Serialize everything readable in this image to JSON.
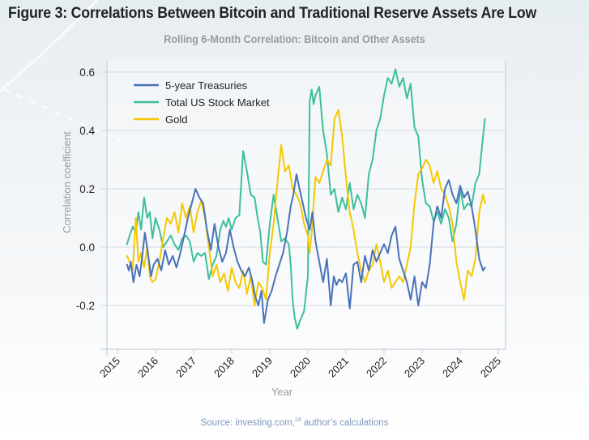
{
  "figure": {
    "title": "Figure 3: Correlations Between Bitcoin and Traditional Reserve Assets Are Low",
    "source_prefix": "Source: investing.com,",
    "source_ref": "24",
    "source_suffix": " author’s calculations"
  },
  "chart_data": {
    "type": "line",
    "title": "Rolling 6-Month Correlation: Bitcoin and Other Assets",
    "xlabel": "Year",
    "ylabel": "Correlation coefficient",
    "xlim": [
      2014.8,
      2025.2
    ],
    "ylim": [
      -0.35,
      0.65
    ],
    "x_ticks": [
      2015,
      2016,
      2017,
      2018,
      2019,
      2020,
      2021,
      2022,
      2023,
      2024,
      2025
    ],
    "y_ticks": [
      -0.2,
      0.0,
      0.2,
      0.4,
      0.6
    ],
    "y_tick_labels": [
      "-0.2",
      "0.0",
      "0.2",
      "0.4",
      "0.6"
    ],
    "grid": "horizontal",
    "legend_position": "top-left",
    "series": [
      {
        "name": "5-year Treasuries",
        "color": "#4a72b8",
        "x": [
          2015.25,
          2015.3,
          2015.35,
          2015.42,
          2015.5,
          2015.58,
          2015.65,
          2015.72,
          2015.8,
          2015.88,
          2015.95,
          2016.05,
          2016.15,
          2016.25,
          2016.35,
          2016.45,
          2016.55,
          2016.65,
          2016.75,
          2016.85,
          2016.95,
          2017.05,
          2017.15,
          2017.25,
          2017.35,
          2017.45,
          2017.55,
          2017.65,
          2017.75,
          2017.85,
          2017.95,
          2018.05,
          2018.15,
          2018.25,
          2018.35,
          2018.45,
          2018.55,
          2018.62,
          2018.7,
          2018.78,
          2018.85,
          2018.95,
          2019.05,
          2019.15,
          2019.25,
          2019.35,
          2019.45,
          2019.55,
          2019.62,
          2019.7,
          2019.78,
          2019.85,
          2019.95,
          2020.05,
          2020.12,
          2020.2,
          2020.3,
          2020.4,
          2020.5,
          2020.6,
          2020.68,
          2020.75,
          2020.82,
          2020.9,
          2021.0,
          2021.1,
          2021.2,
          2021.3,
          2021.4,
          2021.5,
          2021.6,
          2021.7,
          2021.8,
          2021.9,
          2022.0,
          2022.1,
          2022.2,
          2022.3,
          2022.4,
          2022.5,
          2022.6,
          2022.7,
          2022.8,
          2022.9,
          2023.0,
          2023.1,
          2023.2,
          2023.3,
          2023.4,
          2023.5,
          2023.6,
          2023.7,
          2023.8,
          2023.9,
          2024.0,
          2024.1,
          2024.2,
          2024.3,
          2024.4,
          2024.5,
          2024.6,
          2024.65
        ],
        "y": [
          -0.06,
          -0.08,
          -0.05,
          -0.12,
          -0.06,
          -0.1,
          -0.03,
          0.05,
          -0.02,
          -0.1,
          -0.06,
          -0.04,
          -0.08,
          -0.01,
          -0.06,
          -0.03,
          -0.07,
          -0.02,
          0.04,
          0.1,
          0.15,
          0.2,
          0.17,
          0.15,
          0.06,
          -0.01,
          0.08,
          0.0,
          -0.05,
          -0.02,
          0.06,
          0.0,
          -0.05,
          -0.08,
          -0.1,
          -0.07,
          -0.12,
          -0.17,
          -0.2,
          -0.15,
          -0.26,
          -0.18,
          -0.15,
          -0.1,
          -0.06,
          -0.02,
          0.05,
          0.14,
          0.18,
          0.25,
          0.2,
          0.16,
          0.1,
          0.06,
          0.12,
          0.02,
          -0.05,
          -0.12,
          -0.04,
          -0.2,
          -0.1,
          -0.13,
          -0.11,
          -0.12,
          -0.09,
          -0.21,
          -0.06,
          -0.05,
          -0.12,
          -0.03,
          -0.08,
          -0.01,
          -0.05,
          -0.02,
          0.01,
          -0.02,
          0.04,
          0.07,
          -0.04,
          -0.08,
          -0.12,
          -0.18,
          -0.1,
          -0.2,
          -0.12,
          -0.14,
          -0.06,
          0.08,
          0.14,
          0.1,
          0.2,
          0.23,
          0.18,
          0.15,
          0.21,
          0.17,
          0.19,
          0.14,
          0.06,
          -0.04,
          -0.08,
          -0.07
        ]
      },
      {
        "name": "Total US Stock Market",
        "color": "#3dbf9c",
        "x": [
          2015.25,
          2015.32,
          2015.4,
          2015.48,
          2015.55,
          2015.62,
          2015.7,
          2015.78,
          2015.85,
          2015.92,
          2016.0,
          2016.1,
          2016.2,
          2016.3,
          2016.4,
          2016.5,
          2016.6,
          2016.7,
          2016.8,
          2016.9,
          2017.0,
          2017.1,
          2017.2,
          2017.3,
          2017.4,
          2017.5,
          2017.6,
          2017.7,
          2017.78,
          2017.85,
          2017.92,
          2018.0,
          2018.1,
          2018.2,
          2018.3,
          2018.4,
          2018.5,
          2018.6,
          2018.68,
          2018.75,
          2018.82,
          2018.9,
          2019.0,
          2019.1,
          2019.2,
          2019.3,
          2019.4,
          2019.5,
          2019.55,
          2019.6,
          2019.65,
          2019.72,
          2019.8,
          2019.9,
          2020.0,
          2020.05,
          2020.1,
          2020.15,
          2020.2,
          2020.3,
          2020.4,
          2020.5,
          2020.6,
          2020.7,
          2020.8,
          2020.9,
          2021.0,
          2021.1,
          2021.2,
          2021.3,
          2021.4,
          2021.5,
          2021.6,
          2021.7,
          2021.8,
          2021.9,
          2022.0,
          2022.1,
          2022.2,
          2022.3,
          2022.4,
          2022.5,
          2022.6,
          2022.7,
          2022.8,
          2022.9,
          2023.0,
          2023.1,
          2023.2,
          2023.3,
          2023.4,
          2023.5,
          2023.6,
          2023.7,
          2023.8,
          2023.9,
          2024.0,
          2024.1,
          2024.2,
          2024.3,
          2024.4,
          2024.5,
          2024.6,
          2024.65
        ],
        "y": [
          0.01,
          0.04,
          0.07,
          0.05,
          0.12,
          0.06,
          0.17,
          0.1,
          0.12,
          0.03,
          0.1,
          0.06,
          0.0,
          0.02,
          0.04,
          0.01,
          -0.01,
          0.03,
          0.04,
          0.02,
          -0.05,
          -0.02,
          -0.03,
          -0.02,
          -0.11,
          -0.06,
          -0.03,
          0.06,
          0.09,
          0.07,
          0.1,
          0.06,
          0.1,
          0.11,
          0.33,
          0.26,
          0.18,
          0.17,
          0.1,
          0.05,
          -0.05,
          -0.06,
          0.08,
          0.18,
          0.1,
          0.02,
          0.03,
          0.01,
          -0.06,
          -0.18,
          -0.24,
          -0.28,
          -0.25,
          -0.22,
          -0.1,
          0.5,
          0.54,
          0.49,
          0.52,
          0.55,
          0.4,
          0.32,
          0.18,
          0.2,
          0.12,
          0.17,
          0.13,
          0.22,
          0.13,
          0.18,
          0.15,
          0.1,
          0.25,
          0.3,
          0.4,
          0.44,
          0.52,
          0.58,
          0.56,
          0.61,
          0.55,
          0.58,
          0.51,
          0.56,
          0.41,
          0.38,
          0.23,
          0.15,
          0.14,
          0.09,
          0.12,
          0.08,
          0.13,
          0.1,
          0.02,
          0.08,
          0.2,
          0.13,
          0.15,
          0.14,
          0.22,
          0.25,
          0.38,
          0.44
        ]
      },
      {
        "name": "Gold",
        "color": "#f5c800",
        "x": [
          2015.25,
          2015.32,
          2015.4,
          2015.48,
          2015.55,
          2015.62,
          2015.7,
          2015.78,
          2015.85,
          2015.92,
          2016.0,
          2016.1,
          2016.2,
          2016.3,
          2016.4,
          2016.5,
          2016.6,
          2016.7,
          2016.8,
          2016.9,
          2017.0,
          2017.1,
          2017.2,
          2017.3,
          2017.4,
          2017.5,
          2017.6,
          2017.7,
          2017.8,
          2017.9,
          2018.0,
          2018.1,
          2018.2,
          2018.3,
          2018.4,
          2018.5,
          2018.6,
          2018.7,
          2018.8,
          2018.9,
          2019.0,
          2019.1,
          2019.2,
          2019.3,
          2019.4,
          2019.5,
          2019.6,
          2019.7,
          2019.8,
          2019.9,
          2020.0,
          2020.05,
          2020.1,
          2020.2,
          2020.3,
          2020.4,
          2020.5,
          2020.6,
          2020.7,
          2020.8,
          2020.9,
          2021.0,
          2021.1,
          2021.2,
          2021.3,
          2021.4,
          2021.5,
          2021.6,
          2021.7,
          2021.8,
          2021.9,
          2022.0,
          2022.1,
          2022.2,
          2022.3,
          2022.4,
          2022.5,
          2022.6,
          2022.7,
          2022.8,
          2022.9,
          2023.0,
          2023.1,
          2023.2,
          2023.3,
          2023.4,
          2023.5,
          2023.6,
          2023.7,
          2023.8,
          2023.9,
          2024.0,
          2024.1,
          2024.2,
          2024.3,
          2024.4,
          2024.5,
          2024.6,
          2024.65
        ],
        "y": [
          -0.03,
          -0.05,
          -0.08,
          0.1,
          -0.05,
          -0.02,
          -0.07,
          0.0,
          -0.1,
          -0.12,
          -0.11,
          -0.05,
          0.03,
          0.1,
          0.08,
          0.12,
          0.05,
          0.15,
          0.1,
          0.14,
          0.05,
          0.12,
          0.16,
          0.1,
          0.0,
          -0.1,
          -0.06,
          -0.12,
          -0.09,
          -0.15,
          -0.07,
          -0.12,
          -0.14,
          -0.08,
          -0.16,
          -0.1,
          -0.2,
          -0.12,
          -0.14,
          -0.18,
          -0.02,
          0.08,
          0.22,
          0.35,
          0.26,
          0.28,
          0.2,
          0.18,
          0.15,
          0.08,
          0.04,
          -0.02,
          0.05,
          0.24,
          0.22,
          0.26,
          0.3,
          0.28,
          0.44,
          0.47,
          0.38,
          0.24,
          0.12,
          0.06,
          -0.02,
          -0.08,
          -0.12,
          -0.08,
          -0.06,
          0.01,
          -0.05,
          -0.12,
          -0.08,
          -0.14,
          -0.12,
          -0.1,
          -0.12,
          -0.06,
          0.0,
          0.15,
          0.25,
          0.27,
          0.3,
          0.28,
          0.22,
          0.26,
          0.2,
          0.18,
          0.14,
          0.08,
          -0.05,
          -0.12,
          -0.18,
          -0.08,
          -0.1,
          -0.04,
          0.12,
          0.18,
          0.15
        ]
      }
    ]
  }
}
